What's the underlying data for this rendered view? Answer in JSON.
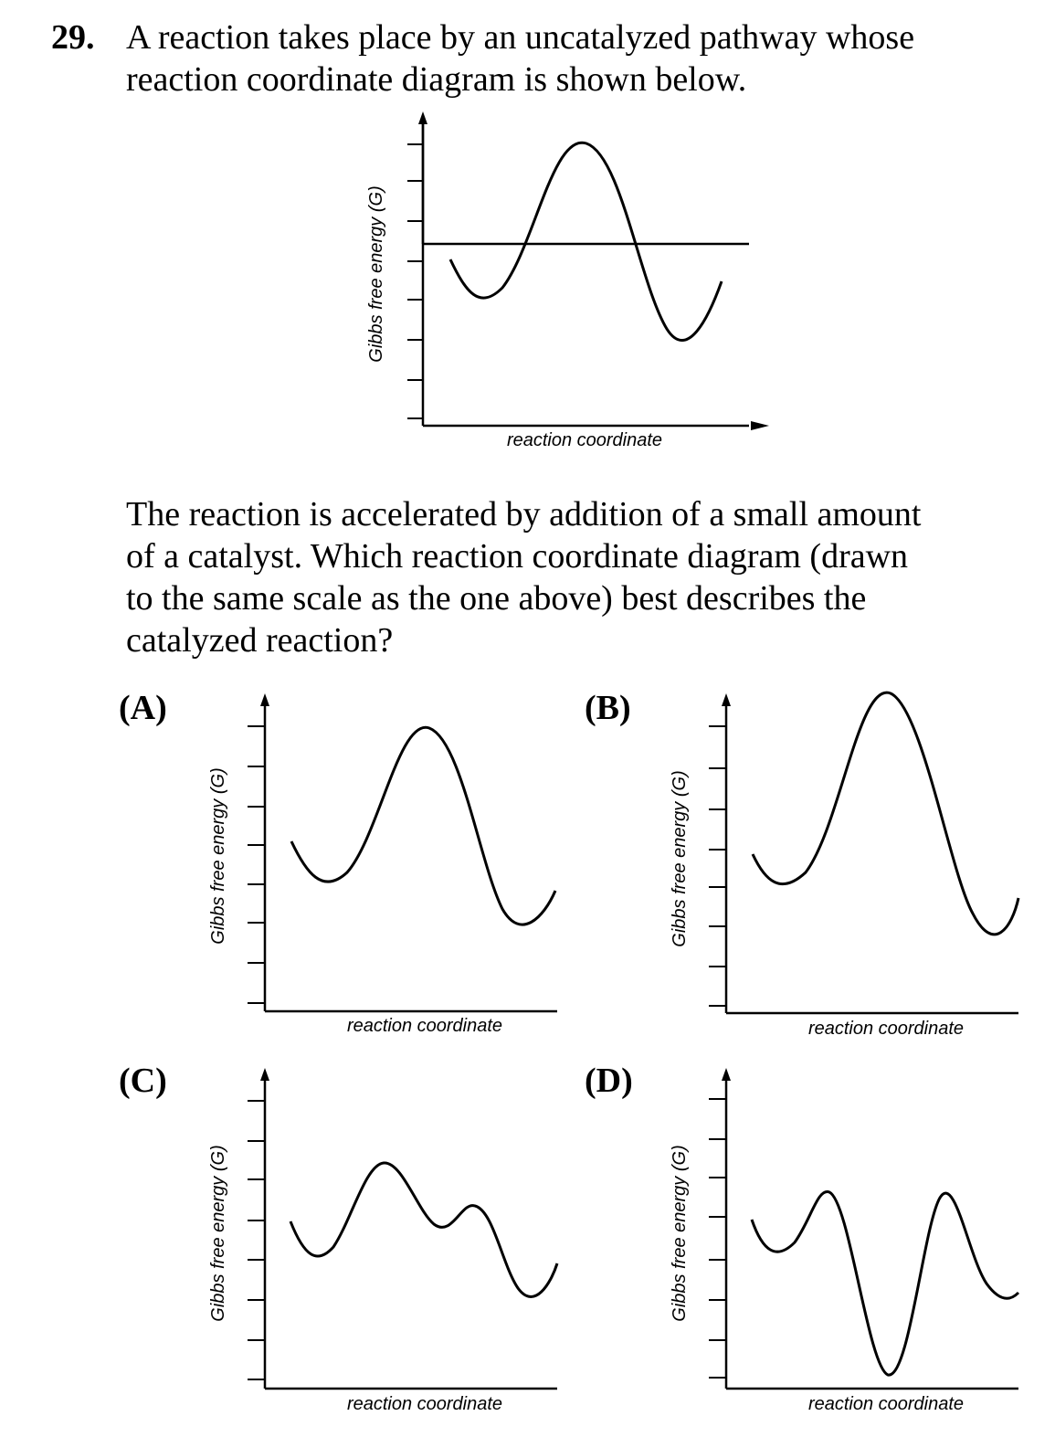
{
  "question": {
    "number": "29.",
    "stem_lines": [
      "A reaction takes place by an uncatalyzed pathway whose",
      "reaction coordinate diagram is shown below."
    ],
    "followup_lines": [
      "The reaction is accelerated by addition of a small amount",
      "of a catalyst.  Which reaction coordinate diagram (drawn",
      "to the same scale as the one above) best describes the",
      "catalyzed reaction?"
    ]
  },
  "axis_labels": {
    "y": "Gibbs free energy (G)",
    "x": "reaction coordinate"
  },
  "diagrams": {
    "main": {
      "label": ""
    },
    "A": {
      "label": "(A)"
    },
    "B": {
      "label": "(B)"
    },
    "C": {
      "label": "(C)"
    },
    "D": {
      "label": "(D)"
    }
  },
  "colors": {
    "ink": "#000000",
    "background": "#ffffff"
  }
}
